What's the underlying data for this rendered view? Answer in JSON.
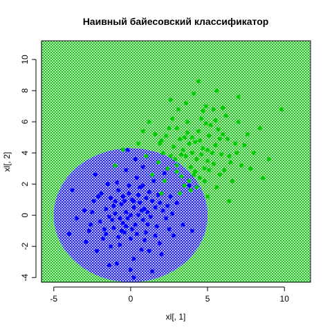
{
  "chart_data": {
    "type": "scatter",
    "title": "Наивный байесовский классификатор",
    "xlabel": "xl[, 1]",
    "ylabel": "xl[, 2]",
    "xlim": [
      -5.8,
      11.7
    ],
    "ylim": [
      -4.3,
      11.2
    ],
    "x_ticks": [
      -5,
      0,
      5,
      10
    ],
    "y_ticks": [
      -4,
      -2,
      0,
      2,
      4,
      6,
      8,
      10
    ],
    "x_tick_labels": [
      "-5",
      "0",
      "5",
      "10"
    ],
    "y_tick_labels": [
      "-4",
      "-2",
      "0",
      "2",
      "4",
      "6",
      "8",
      "10"
    ],
    "regions": [
      {
        "class": "class-1",
        "color": "#0000ff",
        "shape": "ellipse",
        "center": [
          0,
          0
        ],
        "radii": [
          5.0,
          4.3
        ]
      },
      {
        "class": "class-2",
        "color": "#00cc00",
        "shape": "rest"
      }
    ],
    "series": [
      {
        "class": "class-1",
        "color": "#0000ff",
        "points": [
          [
            0.2,
            0.5
          ],
          [
            -0.5,
            1.2
          ],
          [
            0.8,
            -0.3
          ],
          [
            -1.1,
            -0.8
          ],
          [
            1.4,
            0.9
          ],
          [
            0.0,
            -1.5
          ],
          [
            -0.3,
            0.2
          ],
          [
            0.6,
            1.8
          ],
          [
            -1.6,
            0.4
          ],
          [
            1.0,
            -1.1
          ],
          [
            0.3,
            -0.6
          ],
          [
            -0.8,
            1.6
          ],
          [
            2.1,
            0.3
          ],
          [
            -2.0,
            -0.4
          ],
          [
            0.9,
            0.4
          ],
          [
            -0.2,
            -0.2
          ],
          [
            1.7,
            -0.7
          ],
          [
            -1.3,
            1.1
          ],
          [
            0.4,
            2.4
          ],
          [
            -0.7,
            -1.9
          ],
          [
            2.6,
            1.2
          ],
          [
            -2.4,
            0.9
          ],
          [
            0.1,
            1.0
          ],
          [
            1.2,
            1.5
          ],
          [
            -1.0,
            0.1
          ],
          [
            0.7,
            -2.2
          ],
          [
            -0.4,
            -1.1
          ],
          [
            1.9,
            -1.8
          ],
          [
            -1.8,
            -1.5
          ],
          [
            0.5,
            0.0
          ],
          [
            -0.1,
            1.9
          ],
          [
            2.3,
            -0.2
          ],
          [
            -2.7,
            -1.0
          ],
          [
            1.1,
            0.2
          ],
          [
            -0.6,
            0.7
          ],
          [
            0.0,
            0.0
          ],
          [
            3.0,
            0.8
          ],
          [
            -3.0,
            0.3
          ],
          [
            0.2,
            -2.8
          ],
          [
            -0.3,
            2.9
          ],
          [
            1.5,
            2.2
          ],
          [
            -1.5,
            2.0
          ],
          [
            2.0,
            -2.5
          ],
          [
            -2.2,
            -2.3
          ],
          [
            0.8,
            3.1
          ],
          [
            -0.9,
            -3.1
          ],
          [
            3.4,
            -0.6
          ],
          [
            -3.5,
            -0.2
          ],
          [
            0.3,
            3.6
          ],
          [
            0.0,
            -3.5
          ],
          [
            1.3,
            -0.1
          ],
          [
            -1.2,
            -0.3
          ],
          [
            0.6,
            0.8
          ],
          [
            -0.5,
            -0.5
          ],
          [
            2.4,
            0.6
          ],
          [
            -2.5,
            0.2
          ],
          [
            1.8,
            1.3
          ],
          [
            -1.9,
            1.4
          ],
          [
            1.6,
            -1.3
          ],
          [
            -1.7,
            -0.9
          ],
          [
            0.1,
            -0.9
          ],
          [
            -0.1,
            1.4
          ],
          [
            0.9,
            -1.6
          ],
          [
            -0.8,
            -1.4
          ],
          [
            1.0,
            1.1
          ],
          [
            -1.1,
            0.6
          ],
          [
            2.8,
            -1.3
          ],
          [
            -2.9,
            -1.7
          ],
          [
            0.4,
            -1.2
          ],
          [
            -0.4,
            0.9
          ],
          [
            3.8,
            1.9
          ],
          [
            -3.8,
            1.6
          ],
          [
            2.2,
            2.7
          ],
          [
            -2.3,
            2.6
          ],
          [
            0.2,
            -4.0
          ],
          [
            -0.2,
            4.2
          ],
          [
            1.4,
            -3.6
          ],
          [
            -1.4,
            -3.2
          ],
          [
            4.0,
            -1.0
          ],
          [
            -4.0,
            -1.2
          ],
          [
            0.7,
            0.3
          ],
          [
            -0.7,
            -0.2
          ],
          [
            1.1,
            -0.6
          ],
          [
            -1.0,
            0.9
          ],
          [
            0.5,
            1.3
          ],
          [
            -0.6,
            -1.0
          ],
          [
            1.6,
            0.5
          ],
          [
            -1.4,
            -0.1
          ],
          [
            0.2,
            0.9
          ],
          [
            -0.3,
            -0.7
          ],
          [
            2.5,
            -0.9
          ],
          [
            -2.1,
            1.2
          ],
          [
            1.9,
            0.8
          ],
          [
            -1.6,
            -1.2
          ],
          [
            0.8,
            1.9
          ],
          [
            -0.9,
            2.1
          ],
          [
            1.2,
            -2.3
          ],
          [
            -1.3,
            -2.0
          ],
          [
            2.7,
            0.1
          ],
          [
            -2.6,
            -0.6
          ]
        ]
      },
      {
        "class": "class-2",
        "color": "#00cc00",
        "points": [
          [
            4.0,
            4.0
          ],
          [
            3.5,
            5.0
          ],
          [
            5.0,
            3.5
          ],
          [
            4.5,
            4.8
          ],
          [
            3.0,
            3.2
          ],
          [
            5.5,
            4.5
          ],
          [
            4.2,
            2.8
          ],
          [
            3.8,
            4.6
          ],
          [
            6.0,
            5.2
          ],
          [
            2.8,
            4.4
          ],
          [
            4.8,
            3.0
          ],
          [
            5.2,
            5.8
          ],
          [
            3.3,
            2.5
          ],
          [
            6.4,
            3.8
          ],
          [
            2.5,
            5.6
          ],
          [
            4.6,
            6.2
          ],
          [
            5.8,
            2.6
          ],
          [
            3.6,
            3.8
          ],
          [
            4.4,
            5.4
          ],
          [
            5.0,
            4.2
          ],
          [
            1.2,
            6.0
          ],
          [
            2.0,
            4.8
          ],
          [
            6.8,
            4.6
          ],
          [
            7.2,
            3.2
          ],
          [
            2.2,
            2.2
          ],
          [
            5.6,
            1.8
          ],
          [
            3.9,
            1.6
          ],
          [
            6.2,
            6.4
          ],
          [
            3.1,
            6.8
          ],
          [
            4.9,
            7.0
          ],
          [
            1.0,
            3.8
          ],
          [
            0.5,
            4.6
          ],
          [
            7.6,
            5.2
          ],
          [
            8.0,
            4.0
          ],
          [
            6.6,
            2.2
          ],
          [
            2.6,
            7.4
          ],
          [
            4.1,
            7.8
          ],
          [
            5.4,
            6.8
          ],
          [
            1.6,
            5.2
          ],
          [
            7.0,
            6.0
          ],
          [
            3.4,
            4.2
          ],
          [
            4.3,
            3.6
          ],
          [
            5.1,
            2.9
          ],
          [
            2.9,
            3.6
          ],
          [
            4.7,
            4.3
          ],
          [
            3.7,
            5.3
          ],
          [
            5.9,
            3.9
          ],
          [
            4.0,
            5.0
          ],
          [
            3.2,
            4.9
          ],
          [
            5.3,
            4.0
          ],
          [
            2.4,
            3.0
          ],
          [
            6.3,
            4.9
          ],
          [
            4.5,
            2.4
          ],
          [
            3.0,
            5.6
          ],
          [
            5.7,
            5.5
          ],
          [
            3.8,
            2.2
          ],
          [
            6.5,
            3.4
          ],
          [
            2.1,
            4.0
          ],
          [
            4.9,
            5.9
          ],
          [
            3.5,
            1.9
          ],
          [
            7.4,
            4.5
          ],
          [
            1.8,
            3.4
          ],
          [
            6.0,
            6.9
          ],
          [
            2.7,
            6.2
          ],
          [
            8.4,
            5.6
          ],
          [
            0.8,
            5.4
          ],
          [
            5.0,
            1.2
          ],
          [
            3.6,
            7.2
          ],
          [
            7.8,
            3.0
          ],
          [
            1.4,
            2.6
          ],
          [
            9.8,
            6.8
          ],
          [
            -0.5,
            4.2
          ],
          [
            9.0,
            3.6
          ],
          [
            4.4,
            8.6
          ],
          [
            6.4,
            0.9
          ],
          [
            2.0,
            1.4
          ],
          [
            7.0,
            7.6
          ],
          [
            8.6,
            2.4
          ],
          [
            -1.0,
            3.2
          ],
          [
            5.6,
            8.0
          ],
          [
            3.9,
            3.1
          ],
          [
            4.6,
            3.9
          ],
          [
            4.2,
            4.7
          ],
          [
            3.3,
            3.9
          ],
          [
            5.4,
            3.3
          ],
          [
            4.1,
            2.6
          ],
          [
            3.0,
            2.8
          ],
          [
            5.1,
            5.1
          ],
          [
            2.6,
            3.8
          ],
          [
            4.8,
            2.2
          ],
          [
            6.1,
            2.9
          ],
          [
            3.7,
            6.0
          ],
          [
            5.8,
            4.9
          ],
          [
            2.3,
            5.1
          ],
          [
            4.3,
            1.8
          ],
          [
            6.9,
            4.0
          ],
          [
            3.2,
            1.4
          ],
          [
            5.5,
            6.1
          ],
          [
            1.9,
            4.6
          ],
          [
            4.7,
            6.7
          ]
        ]
      }
    ]
  }
}
